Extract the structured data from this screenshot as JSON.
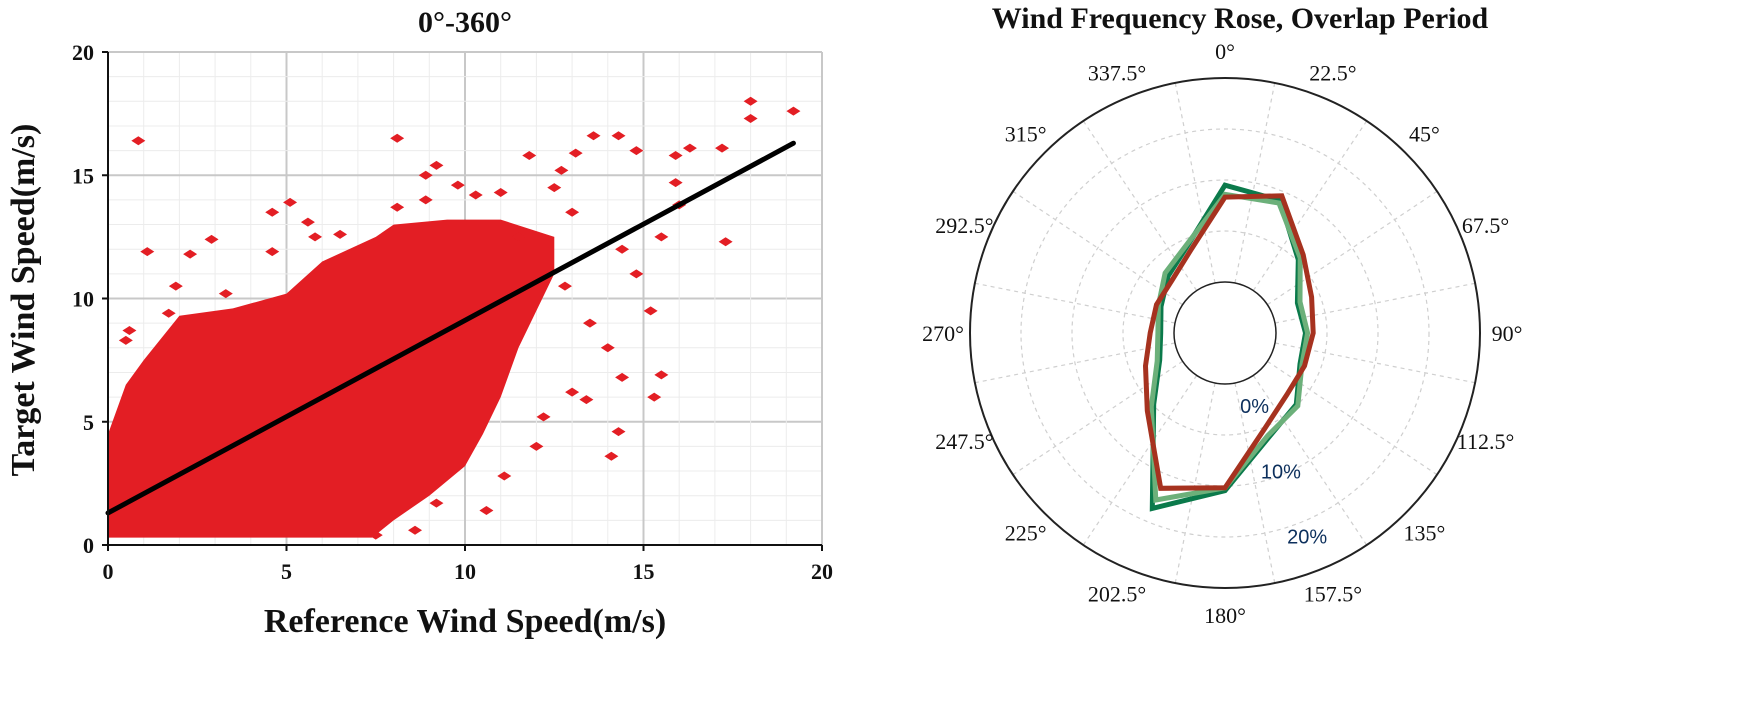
{
  "chart_data": [
    {
      "type": "scatter",
      "title": "0°-360°",
      "xlabel": "Reference Wind Speed(m/s)",
      "ylabel": "Target Wind Speed(m/s)",
      "xlim": [
        0,
        20
      ],
      "ylim": [
        0,
        20
      ],
      "xticks": [
        "0",
        "5",
        "10",
        "15",
        "20"
      ],
      "yticks": [
        "0",
        "5",
        "10",
        "15",
        "20"
      ],
      "grid": true,
      "point_color": "#e31e24",
      "line_color": "#000000",
      "regression_line": {
        "x": [
          0,
          19.2
        ],
        "y": [
          1.3,
          16.3
        ]
      },
      "dense_cloud_outline": [
        [
          0,
          0.3
        ],
        [
          7.4,
          0.3
        ],
        [
          8,
          1
        ],
        [
          9,
          2
        ],
        [
          10,
          3.2
        ],
        [
          10.5,
          4.5
        ],
        [
          11,
          6
        ],
        [
          11.5,
          8
        ],
        [
          12,
          9.5
        ],
        [
          12.5,
          11
        ],
        [
          12.5,
          12.5
        ],
        [
          11,
          13.2
        ],
        [
          9.5,
          13.2
        ],
        [
          8,
          13
        ],
        [
          7.5,
          12.5
        ],
        [
          6,
          11.5
        ],
        [
          5,
          10.2
        ],
        [
          3.5,
          9.6
        ],
        [
          2,
          9.3
        ],
        [
          1,
          7.5
        ],
        [
          0.5,
          6.5
        ],
        [
          0,
          4.5
        ]
      ],
      "points": [
        [
          0.85,
          16.4
        ],
        [
          1.1,
          11.9
        ],
        [
          2.3,
          11.8
        ],
        [
          2.9,
          12.4
        ],
        [
          1.9,
          10.5
        ],
        [
          3.3,
          10.2
        ],
        [
          0.6,
          8.7
        ],
        [
          0.5,
          8.3
        ],
        [
          1.7,
          9.4
        ],
        [
          4.6,
          13.5
        ],
        [
          5.1,
          13.9
        ],
        [
          4.6,
          11.9
        ],
        [
          5.6,
          13.1
        ],
        [
          5.8,
          12.5
        ],
        [
          6.5,
          12.6
        ],
        [
          8.1,
          16.5
        ],
        [
          8.1,
          13.7
        ],
        [
          8.9,
          15.0
        ],
        [
          9.2,
          15.4
        ],
        [
          8.9,
          14.0
        ],
        [
          9.8,
          14.6
        ],
        [
          10.3,
          14.2
        ],
        [
          11.0,
          14.3
        ],
        [
          11.8,
          15.8
        ],
        [
          12.7,
          15.2
        ],
        [
          13.1,
          15.9
        ],
        [
          13.6,
          16.6
        ],
        [
          14.3,
          16.6
        ],
        [
          14.8,
          16.0
        ],
        [
          15.9,
          15.8
        ],
        [
          16.3,
          16.1
        ],
        [
          17.2,
          16.1
        ],
        [
          18.0,
          18.0
        ],
        [
          18.0,
          17.3
        ],
        [
          19.2,
          17.6
        ],
        [
          17.3,
          12.3
        ],
        [
          15.9,
          14.7
        ],
        [
          15.5,
          12.5
        ],
        [
          14.8,
          11.0
        ],
        [
          15.2,
          9.5
        ],
        [
          15.5,
          6.9
        ],
        [
          15.3,
          6.0
        ],
        [
          14.3,
          4.6
        ],
        [
          14.1,
          3.6
        ],
        [
          13.4,
          5.9
        ],
        [
          13.0,
          6.2
        ],
        [
          12.2,
          5.2
        ],
        [
          12.0,
          4.0
        ],
        [
          11.1,
          2.8
        ],
        [
          10.6,
          1.4
        ],
        [
          9.2,
          1.7
        ],
        [
          8.6,
          0.6
        ],
        [
          7.5,
          0.4
        ],
        [
          14.0,
          8.0
        ],
        [
          14.4,
          6.8
        ],
        [
          13.5,
          9.0
        ],
        [
          14.4,
          12.0
        ],
        [
          16.0,
          13.8
        ],
        [
          13.0,
          13.5
        ],
        [
          12.5,
          14.5
        ],
        [
          11.5,
          12.5
        ],
        [
          12.8,
          10.5
        ]
      ]
    },
    {
      "type": "line",
      "subtype": "polar",
      "title": "Wind Frequency Rose, Overlap Period",
      "angle_labels": [
        "0°",
        "22.5°",
        "45°",
        "67.5°",
        "90°",
        "112.5°",
        "135°",
        "157.5°",
        "180°",
        "202.5°",
        "225°",
        "247.5°",
        "270°",
        "292.5°",
        "315°",
        "337.5°"
      ],
      "radial_labels": [
        "0%",
        "10%",
        "20%"
      ],
      "directions_deg": [
        0,
        22.5,
        45,
        67.5,
        90,
        112.5,
        135,
        157.5,
        180,
        202.5,
        225,
        247.5,
        270,
        292.5,
        315,
        337.5
      ],
      "series": [
        {
          "color": "#0b7a4b",
          "values": [
            13.8,
            13.2,
            7.5,
            3.9,
            4.2,
            4.3,
            7.1,
            8.9,
            15.2,
            19.8,
            7.1,
            2.8,
            1.9,
            2.6,
            4.2,
            6.4
          ]
        },
        {
          "color": "#6cb07a",
          "values": [
            12.5,
            12.8,
            7.9,
            4.3,
            4.5,
            4.6,
            7.4,
            8.6,
            14.8,
            18.5,
            7.6,
            3.2,
            2.3,
            3.0,
            4.8,
            6.6
          ]
        },
        {
          "color": "#a6321f",
          "values": [
            12.1,
            13.9,
            8.5,
            6.1,
            5.3,
            5.0,
            5.2,
            7.5,
            14.8,
            16.7,
            8.4,
            5.0,
            3.4,
            3.3,
            3.4,
            5.5
          ]
        }
      ]
    }
  ]
}
